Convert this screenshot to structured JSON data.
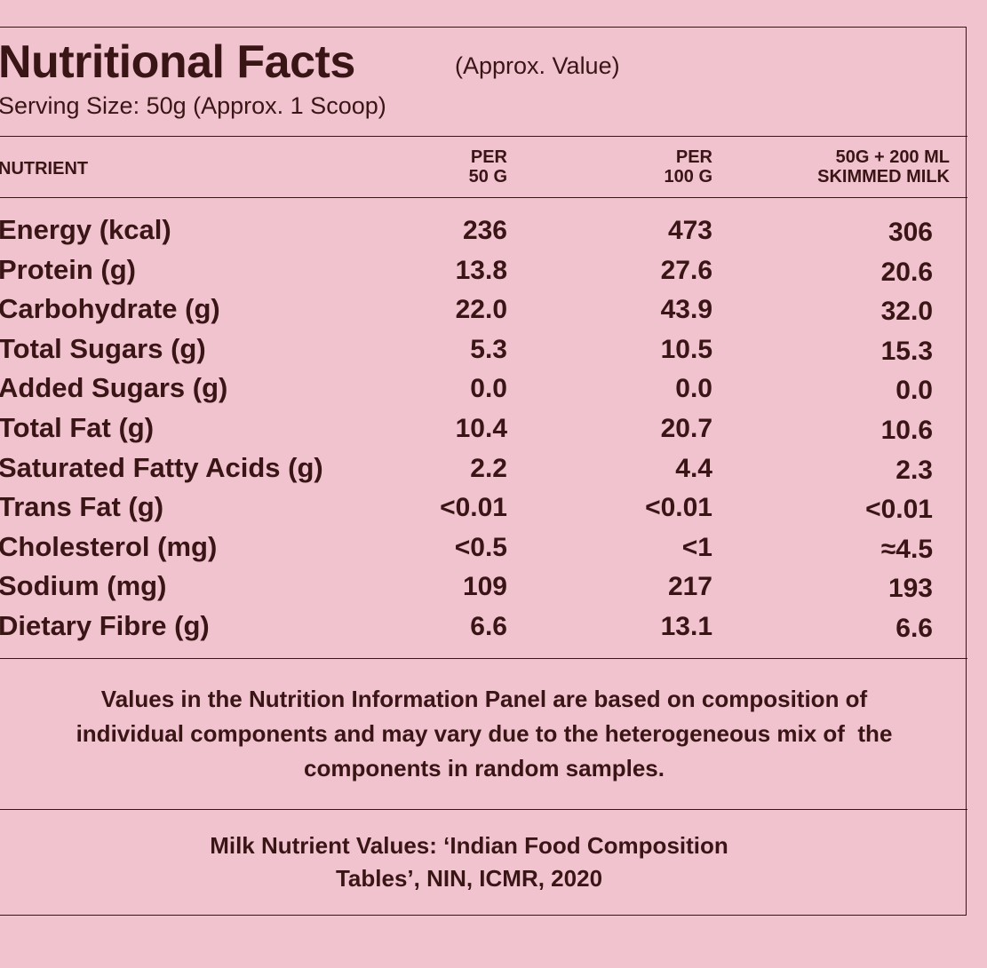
{
  "header": {
    "title": "Nutritional Facts",
    "title_note": "(Approx. Value)",
    "serving_size": "Serving Size: 50g (Approx. 1 Scoop)"
  },
  "table": {
    "columns": [
      [
        "NUTRIENT"
      ],
      [
        "PER",
        "50 G"
      ],
      [
        "PER",
        "100 G"
      ],
      [
        "50G + 200 ML",
        "SKIMMED MILK"
      ]
    ],
    "rows": [
      [
        "Energy (kcal)",
        "236",
        "473",
        "306"
      ],
      [
        "Protein (g)",
        "13.8",
        "27.6",
        "20.6"
      ],
      [
        "Carbohydrate (g)",
        "22.0",
        "43.9",
        "32.0"
      ],
      [
        "Total Sugars (g)",
        "5.3",
        "10.5",
        "15.3"
      ],
      [
        "Added Sugars (g)",
        "0.0",
        "0.0",
        "0.0"
      ],
      [
        "Total Fat (g)",
        "10.4",
        "20.7",
        "10.6"
      ],
      [
        "Saturated Fatty Acids (g)",
        "2.2",
        "4.4",
        "2.3"
      ],
      [
        "Trans Fat (g)",
        "<0.01",
        "<0.01",
        "<0.01"
      ],
      [
        "Cholesterol (mg)",
        "<0.5",
        "<1",
        "≈4.5"
      ],
      [
        "Sodium (mg)",
        "109",
        "217",
        "193"
      ],
      [
        "Dietary Fibre (g)",
        "6.6",
        "13.1",
        "6.6"
      ]
    ]
  },
  "note": [
    "Values in the Nutrition Information Panel are based on composition of",
    "individual components and may vary due to the heterogeneous mix of  the",
    "components in random samples."
  ],
  "source": [
    "Milk Nutrient Values: ‘Indian Food Composition",
    "Tables’, NIN, ICMR, 2020"
  ]
}
